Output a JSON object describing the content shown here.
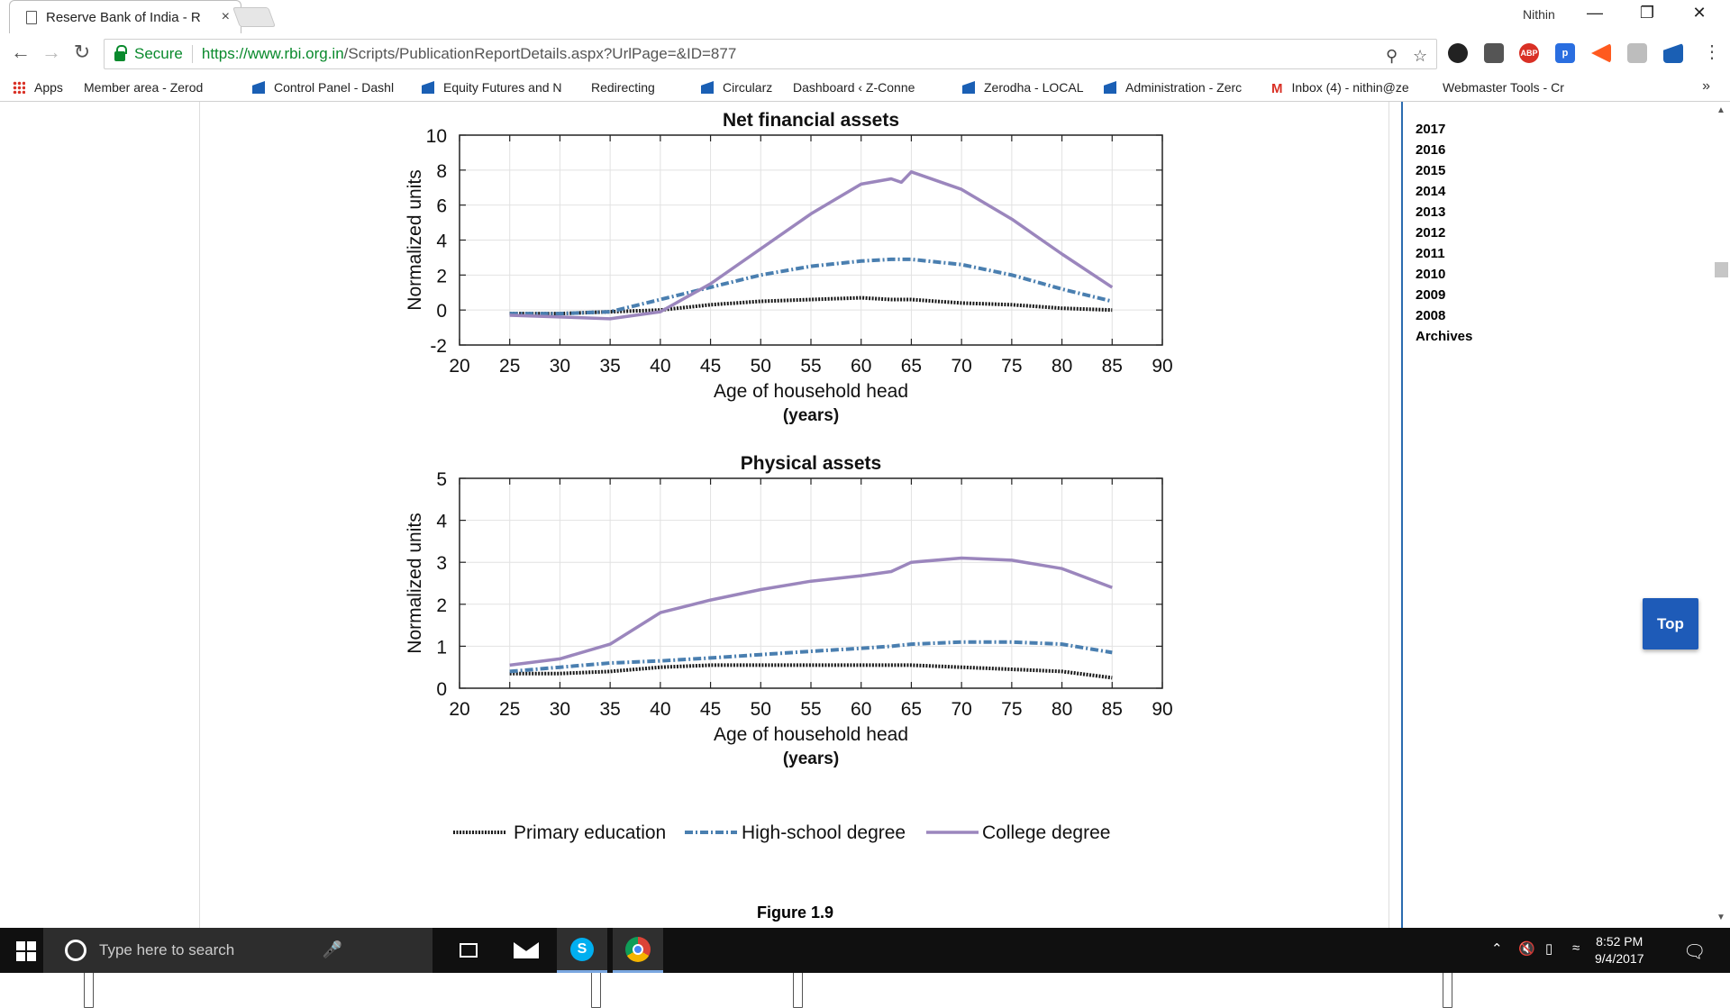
{
  "browser": {
    "tab_title": "Reserve Bank of India - R",
    "tab_close": "×",
    "window_user": "Nithin",
    "secure_label": "Secure",
    "url_domain": "https://www.rbi.org.in",
    "url_path": "/Scripts/PublicationReportDetails.aspx?UrlPage=&ID=877",
    "bookmarks": [
      {
        "label": "Apps",
        "icon": "apps-grid-icon"
      },
      {
        "label": "Member area - Zerod",
        "icon": "page-icon"
      },
      {
        "label": "Control Panel - Dashl",
        "icon": "blue-flag-icon"
      },
      {
        "label": "Equity Futures and N",
        "icon": "blue-flag-icon"
      },
      {
        "label": "Redirecting",
        "icon": "page-icon"
      },
      {
        "label": "Circularz",
        "icon": "blue-flag-icon"
      },
      {
        "label": "Dashboard ‹ Z-Conne",
        "icon": "page-icon"
      },
      {
        "label": "Zerodha - LOCAL",
        "icon": "blue-flag-icon"
      },
      {
        "label": "Administration - Zerc",
        "icon": "blue-flag-icon"
      },
      {
        "label": "Inbox (4) - nithin@ze",
        "icon": "gmail-icon"
      },
      {
        "label": "Webmaster Tools - Cr",
        "icon": "webmaster-icon"
      }
    ],
    "bookmarks_more": "»"
  },
  "sidebar": {
    "years": [
      "2017",
      "2016",
      "2015",
      "2014",
      "2013",
      "2012",
      "2011",
      "2010",
      "2009",
      "2008",
      "Archives"
    ]
  },
  "top_button": "Top",
  "figure_caption": "Figure 1.9",
  "legend": {
    "primary": "Primary education",
    "highschool": "High-school degree",
    "college": "College degree"
  },
  "colors": {
    "primary": "#1a1a1a",
    "highschool": "#4a7fb0",
    "college": "#9b86bd"
  },
  "chart_data": [
    {
      "type": "line",
      "title": "Net financial assets",
      "xlabel": "Age of household head",
      "xlabel2": "(years)",
      "ylabel": "Normalized units",
      "xlim": [
        20,
        90
      ],
      "ylim": [
        -2,
        10
      ],
      "xticks": [
        20,
        25,
        30,
        35,
        40,
        45,
        50,
        55,
        60,
        65,
        70,
        75,
        80,
        85,
        90
      ],
      "yticks": [
        -2,
        0,
        2,
        4,
        6,
        8,
        10
      ],
      "grid": true,
      "x": [
        25,
        30,
        35,
        40,
        45,
        50,
        55,
        60,
        63,
        64,
        65,
        70,
        75,
        80,
        85
      ],
      "series": [
        {
          "name": "Primary education",
          "values": [
            -0.2,
            -0.2,
            -0.1,
            0.0,
            0.3,
            0.5,
            0.6,
            0.7,
            0.6,
            0.6,
            0.6,
            0.4,
            0.3,
            0.1,
            0.0
          ]
        },
        {
          "name": "High-school degree",
          "values": [
            -0.2,
            -0.2,
            -0.1,
            0.6,
            1.3,
            2.0,
            2.5,
            2.8,
            2.9,
            2.9,
            2.9,
            2.6,
            2.0,
            1.2,
            0.5
          ]
        },
        {
          "name": "College degree",
          "values": [
            -0.3,
            -0.4,
            -0.5,
            -0.1,
            1.5,
            3.5,
            5.5,
            7.2,
            7.5,
            7.3,
            7.9,
            6.9,
            5.2,
            3.2,
            1.3
          ]
        }
      ]
    },
    {
      "type": "line",
      "title": "Physical assets",
      "xlabel": "Age of household head",
      "xlabel2": "(years)",
      "ylabel": "Normalized units",
      "xlim": [
        20,
        90
      ],
      "ylim": [
        0,
        5
      ],
      "xticks": [
        20,
        25,
        30,
        35,
        40,
        45,
        50,
        55,
        60,
        65,
        70,
        75,
        80,
        85,
        90
      ],
      "yticks": [
        0,
        1,
        2,
        3,
        4,
        5
      ],
      "grid": true,
      "x": [
        25,
        30,
        35,
        40,
        45,
        50,
        55,
        60,
        63,
        65,
        70,
        75,
        80,
        85
      ],
      "series": [
        {
          "name": "Primary education",
          "values": [
            0.35,
            0.35,
            0.4,
            0.5,
            0.55,
            0.55,
            0.55,
            0.55,
            0.55,
            0.55,
            0.5,
            0.45,
            0.4,
            0.25
          ]
        },
        {
          "name": "High-school degree",
          "values": [
            0.4,
            0.5,
            0.6,
            0.65,
            0.72,
            0.8,
            0.88,
            0.95,
            1.0,
            1.05,
            1.1,
            1.1,
            1.05,
            0.85
          ]
        },
        {
          "name": "College degree",
          "values": [
            0.55,
            0.7,
            1.05,
            1.8,
            2.1,
            2.35,
            2.55,
            2.68,
            2.78,
            3.0,
            3.1,
            3.05,
            2.85,
            2.4
          ]
        }
      ]
    }
  ],
  "taskbar": {
    "search_placeholder": "Type here to search",
    "time": "8:52 PM",
    "date": "9/4/2017"
  }
}
